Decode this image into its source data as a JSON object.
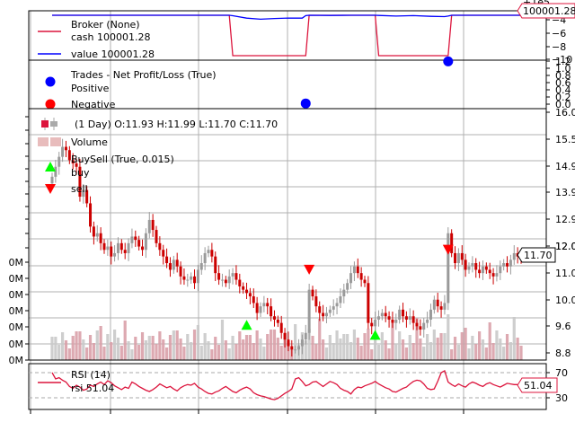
{
  "chart_data": [
    {
      "panel": "broker",
      "type": "line",
      "legend": {
        "title": "Broker (None)",
        "items": [
          {
            "label": "cash 100001.28",
            "color": "#dc143c"
          },
          {
            "label": "value 100001.28",
            "color": "#0000ff"
          }
        ]
      },
      "y_ticks": [
        "−4",
        "−6",
        "−8",
        "−10"
      ],
      "y_offset_label": "+1e5",
      "last_value_label": "100001.28",
      "series": [
        {
          "name": "cash",
          "color": "#dc143c",
          "x": [
            0,
            51,
            52,
            73,
            74,
            93,
            94,
            114,
            115,
            135
          ],
          "y": [
            100001.28,
            100001.28,
            89500,
            89500,
            100001.28,
            100001.28,
            89500,
            89500,
            100001.28,
            100001.28
          ]
        },
        {
          "name": "value",
          "color": "#0000ff",
          "x": [
            0,
            51,
            52,
            56,
            60,
            64,
            68,
            72,
            73,
            74,
            80,
            86,
            93,
            94,
            99,
            104,
            109,
            113,
            114,
            115,
            135
          ],
          "y": [
            100001.28,
            100001.28,
            100000.9,
            99998.9,
            99998.0,
            99998.6,
            99999.0,
            99998.9,
            100001.0,
            100001.28,
            100001.1,
            100001.3,
            100001.28,
            100001.1,
            100000.6,
            100001.0,
            100000.4,
            100000.2,
            100000.6,
            100001.28,
            100001.28
          ]
        }
      ]
    },
    {
      "panel": "trades",
      "type": "scatter",
      "legend": {
        "title": "Trades - Net Profit/Loss (True)",
        "items": [
          {
            "label": "Positive",
            "color": "#0000ff"
          },
          {
            "label": "Negative",
            "color": "#ff0000"
          }
        ]
      },
      "y_ticks": [
        "1.2",
        "1.0",
        "0.8",
        "0.6",
        "0.4",
        "0.2",
        "0.0"
      ],
      "points": [
        {
          "x": 73,
          "y": 0.02,
          "color": "#0000ff"
        },
        {
          "x": 114,
          "y": 1.19,
          "color": "#0000ff"
        }
      ]
    },
    {
      "panel": "price",
      "type": "line",
      "legend": {
        "items": [
          {
            "label": "(1 Day) O:11.93 H:11.99 L:11.70 C:11.70",
            "color": "#dc143c"
          },
          {
            "label": "Volume",
            "color": "#e8bcbc"
          },
          {
            "label": "BuySell (True, 0.015)",
            "color": "#000000"
          },
          {
            "label": "buy",
            "color": "#00ff00"
          },
          {
            "label": "sell",
            "color": "#ff0000"
          }
        ]
      },
      "y_ticks": [
        "16.0",
        "15.5",
        "14.9",
        "13.9",
        "12.9",
        "12.0",
        "12.0",
        "11.0",
        "10.0",
        "9.6",
        "8.8"
      ],
      "volume_ticks": [
        "0M",
        "0M",
        "0M",
        "0M",
        "0M",
        "0M",
        "0M"
      ],
      "last_price_label": "11.70",
      "close": [
        14.2,
        14.5,
        14.8,
        15.1,
        15.0,
        14.7,
        14.6,
        14.5,
        13.6,
        13.8,
        13.4,
        12.7,
        12.4,
        12.5,
        12.2,
        12.0,
        12.1,
        11.8,
        11.9,
        12.2,
        12.0,
        11.9,
        12.2,
        12.4,
        12.3,
        12.1,
        12.0,
        12.5,
        12.9,
        12.6,
        12.2,
        12.0,
        11.8,
        11.6,
        11.4,
        11.7,
        11.5,
        11.2,
        11.1,
        11.1,
        11.2,
        11.0,
        11.4,
        11.6,
        11.9,
        12.0,
        11.8,
        11.3,
        11.1,
        11.1,
        11.0,
        11.2,
        11.3,
        11.1,
        10.9,
        10.8,
        10.7,
        10.6,
        10.4,
        10.1,
        10.3,
        10.4,
        10.3,
        10.0,
        9.9,
        9.8,
        9.5,
        9.3,
        9.1,
        9.0,
        9.0,
        9.1,
        9.3,
        9.5,
        10.8,
        10.6,
        10.3,
        10.1,
        10.0,
        10.1,
        10.2,
        10.3,
        10.4,
        10.6,
        10.8,
        11.0,
        11.3,
        11.5,
        11.3,
        11.1,
        11.0,
        9.8,
        9.7,
        9.9,
        10.0,
        10.1,
        10.0,
        9.9,
        9.8,
        9.9,
        10.2,
        10.0,
        9.9,
        10.0,
        9.8,
        9.7,
        9.6,
        9.8,
        9.9,
        10.2,
        10.5,
        10.3,
        10.2,
        10.4,
        12.5,
        11.9,
        11.6,
        11.9,
        11.7,
        11.4,
        11.5,
        11.6,
        11.4,
        11.3,
        11.5,
        11.4,
        11.3,
        11.2,
        11.3,
        11.5,
        11.6,
        11.5,
        11.7,
        11.9,
        11.8,
        11.7
      ],
      "buy_signals": [
        {
          "x": 56,
          "y": 10.0
        },
        {
          "x": 93,
          "y": 9.7
        }
      ],
      "sell_signals": [
        {
          "x": 74,
          "y": 11.2
        },
        {
          "x": 114,
          "y": 11.8
        }
      ]
    },
    {
      "panel": "rsi",
      "type": "line",
      "legend": {
        "title": "RSI (14)",
        "items": [
          {
            "label": "rsi 51.04",
            "color": "#dc143c"
          }
        ]
      },
      "y_ticks": [
        "70",
        "30"
      ],
      "last_value_label": "51.04",
      "values": [
        70,
        60,
        62,
        58,
        55,
        48,
        45,
        50,
        47,
        42,
        44,
        50,
        48,
        52,
        55,
        51,
        57,
        54,
        49,
        46,
        43,
        47,
        45,
        55,
        52,
        48,
        45,
        42,
        40,
        43,
        47,
        52,
        49,
        46,
        48,
        44,
        41,
        46,
        49,
        51,
        50,
        53,
        47,
        44,
        40,
        37,
        36,
        39,
        41,
        45,
        48,
        44,
        40,
        38,
        42,
        45,
        47,
        44,
        38,
        35,
        33,
        32,
        30,
        28,
        27,
        29,
        33,
        37,
        40,
        44,
        60,
        62,
        56,
        49,
        51,
        55,
        56,
        52,
        48,
        52,
        56,
        54,
        51,
        45,
        42,
        40,
        36,
        43,
        47,
        46,
        49,
        51,
        53,
        56,
        52,
        49,
        46,
        44,
        40,
        39,
        42,
        45,
        47,
        52,
        56,
        58,
        57,
        52,
        45,
        43,
        44,
        56,
        70,
        73,
        55,
        51,
        48,
        52,
        49,
        47,
        52,
        55,
        53,
        50,
        48,
        52,
        54,
        51,
        49,
        47,
        50,
        53,
        52,
        51,
        51
      ]
    }
  ]
}
